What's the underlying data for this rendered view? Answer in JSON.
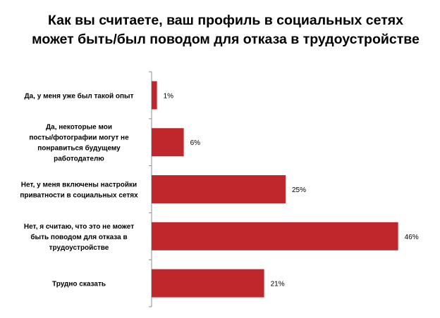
{
  "chart_data": {
    "type": "bar",
    "orientation": "horizontal",
    "title": "Как вы считаете, ваш профиль в социальных сетях может быть/был поводом для отказа в трудоустройстве",
    "categories": [
      "Да, у меня уже был такой опыт",
      "Да, некоторые мои посты/фотографии могут не понравиться будущему работодателю",
      "Нет, у меня включены настройки приватности в социальных сетях",
      "Нет, я считаю, что это не может быть поводом для отказа в трудоустройстве",
      "Трудно сказать"
    ],
    "category_lines": [
      [
        "Да, у меня уже был такой опыт"
      ],
      [
        "Да, некоторые мои",
        "посты/фотографии могут не",
        "понравиться будущему",
        "работодателю"
      ],
      [
        "Нет, у меня включены настройки",
        "приватности в социальных сетях"
      ],
      [
        "Нет, я считаю, что это не может",
        "быть поводом для отказа в",
        "трудоустройстве"
      ],
      [
        "Трудно сказать"
      ]
    ],
    "values": [
      1,
      6,
      25,
      46,
      21
    ],
    "value_labels": [
      "1%",
      "6%",
      "25%",
      "46%",
      "21%"
    ],
    "unit": "%",
    "xlim": [
      0,
      50
    ],
    "bar_color": "#C0272D",
    "grid": false,
    "legend": "none",
    "xlabel": "",
    "ylabel": ""
  }
}
